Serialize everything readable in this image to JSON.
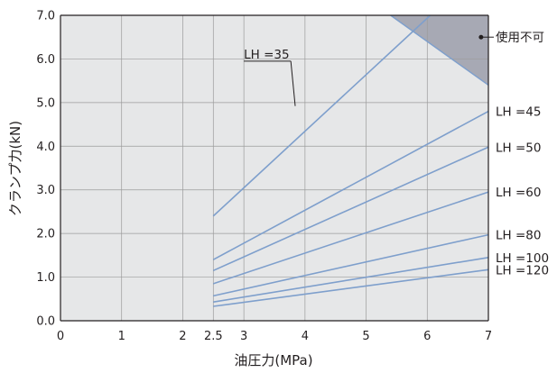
{
  "chart_data": {
    "type": "line",
    "xlabel": "油圧力(MPa)",
    "ylabel": "クランプ力(kN)",
    "xlim": [
      0,
      7
    ],
    "ylim": [
      0,
      7
    ],
    "x_ticks": [
      0,
      1,
      2,
      2.5,
      3,
      4,
      5,
      6,
      7
    ],
    "x_tick_labels": [
      "0",
      "1",
      "2",
      "2.5",
      "3",
      "4",
      "5",
      "6",
      "7"
    ],
    "y_ticks": [
      0,
      1,
      2,
      3,
      4,
      5,
      6,
      7
    ],
    "y_tick_labels": [
      "0.0",
      "1.0",
      "2.0",
      "3.0",
      "4.0",
      "5.0",
      "6.0",
      "7.0"
    ],
    "grid": true,
    "background_color": "#e6e7e8",
    "line_color": "#7e9fcc",
    "unusable_region": {
      "label": "使用不可",
      "color": "#a7a9b4",
      "boundary": [
        {
          "x": 5.4,
          "y": 7.0
        },
        {
          "x": 7.0,
          "y": 5.4
        }
      ]
    },
    "series": [
      {
        "name": "LH =35",
        "x": [
          2.5,
          6.05
        ],
        "y": [
          2.4,
          7.0
        ]
      },
      {
        "name": "LH =45",
        "x": [
          2.5,
          7.0
        ],
        "y": [
          1.4,
          4.8
        ]
      },
      {
        "name": "LH =50",
        "x": [
          2.5,
          7.0
        ],
        "y": [
          1.15,
          3.98
        ]
      },
      {
        "name": "LH =60",
        "x": [
          2.5,
          7.0
        ],
        "y": [
          0.85,
          2.95
        ]
      },
      {
        "name": "LH =80",
        "x": [
          2.5,
          7.0
        ],
        "y": [
          0.57,
          1.97
        ]
      },
      {
        "name": "LH =100",
        "x": [
          2.5,
          7.0
        ],
        "y": [
          0.43,
          1.45
        ]
      },
      {
        "name": "LH =120",
        "x": [
          2.5,
          7.0
        ],
        "y": [
          0.33,
          1.17
        ]
      }
    ]
  }
}
